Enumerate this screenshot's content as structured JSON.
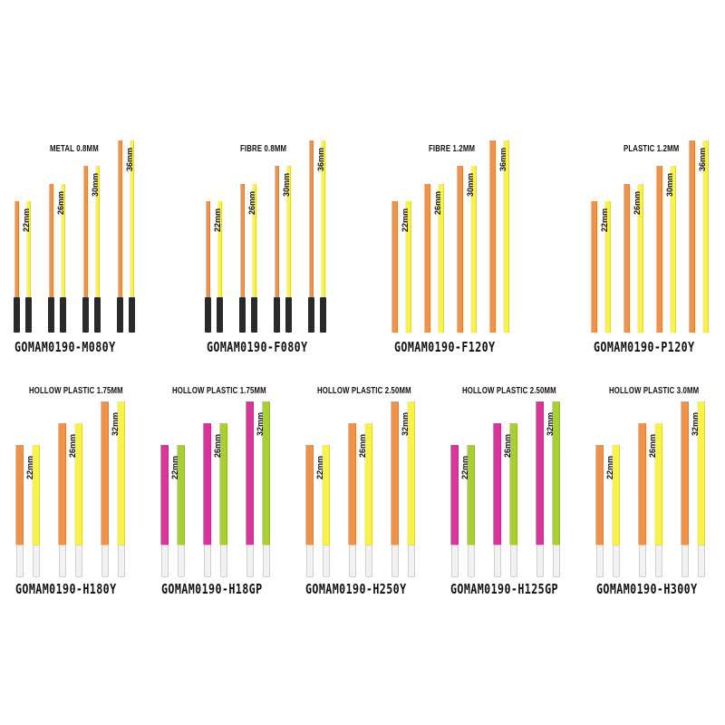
{
  "accent_colors": {
    "orange": "#f0934a",
    "yellow": "#f9f24a",
    "pink": "#d8369a",
    "lime": "#a9cf34",
    "black_stem": "#2a2a2a",
    "white_stem": "#f2f2f2"
  },
  "length_labels": [
    "22mm",
    "26mm",
    "30mm",
    "36mm",
    "32mm"
  ],
  "panels": [
    {
      "title": "METAL 0.8MM",
      "code": "GOMAM0190-M080Y",
      "colors": [
        "orange",
        "yellow"
      ],
      "stem": "black",
      "lengths": [
        "22mm",
        "26mm",
        "30mm",
        "36mm"
      ]
    },
    {
      "title": "FIBRE 0.8MM",
      "code": "GOMAM0190-F080Y",
      "colors": [
        "orange",
        "yellow"
      ],
      "stem": "black",
      "lengths": [
        "22mm",
        "26mm",
        "30mm",
        "36mm"
      ]
    },
    {
      "title": "FIBRE 1.2MM",
      "code": "GOMAM0190-F120Y",
      "colors": [
        "orange",
        "yellow"
      ],
      "stem": "none",
      "lengths": [
        "22mm",
        "26mm",
        "30mm",
        "36mm"
      ]
    },
    {
      "title": "PLASTIC 1.2MM",
      "code": "GOMAM0190-P120Y",
      "colors": [
        "orange",
        "yellow"
      ],
      "stem": "none",
      "lengths": [
        "22mm",
        "26mm",
        "30mm",
        "36mm"
      ]
    },
    {
      "title": "HOLLOW PLASTIC 1.75MM",
      "code": "GOMAM0190-H180Y",
      "colors": [
        "orange",
        "yellow"
      ],
      "stem": "white",
      "lengths": [
        "22mm",
        "26mm",
        "32mm"
      ]
    },
    {
      "title": "HOLLOW PLASTIC 1.75MM",
      "code": "GOMAM0190-H18GP",
      "colors": [
        "pink",
        "lime"
      ],
      "stem": "white",
      "lengths": [
        "22mm",
        "26mm",
        "32mm"
      ]
    },
    {
      "title": "HOLLOW PLASTIC 2.50MM",
      "code": "GOMAM0190-H250Y",
      "colors": [
        "orange",
        "yellow"
      ],
      "stem": "white",
      "lengths": [
        "22mm",
        "26mm",
        "32mm"
      ]
    },
    {
      "title": "HOLLOW PLASTIC 2.50MM",
      "code": "GOMAM0190-H125GP",
      "colors": [
        "pink",
        "lime"
      ],
      "stem": "white",
      "lengths": [
        "22mm",
        "26mm",
        "32mm"
      ]
    },
    {
      "title": "HOLLOW PLASTIC 3.0MM",
      "code": "GOMAM0190-H300Y",
      "colors": [
        "orange",
        "yellow"
      ],
      "stem": "white",
      "lengths": [
        "22mm",
        "26mm",
        "32mm"
      ]
    }
  ]
}
